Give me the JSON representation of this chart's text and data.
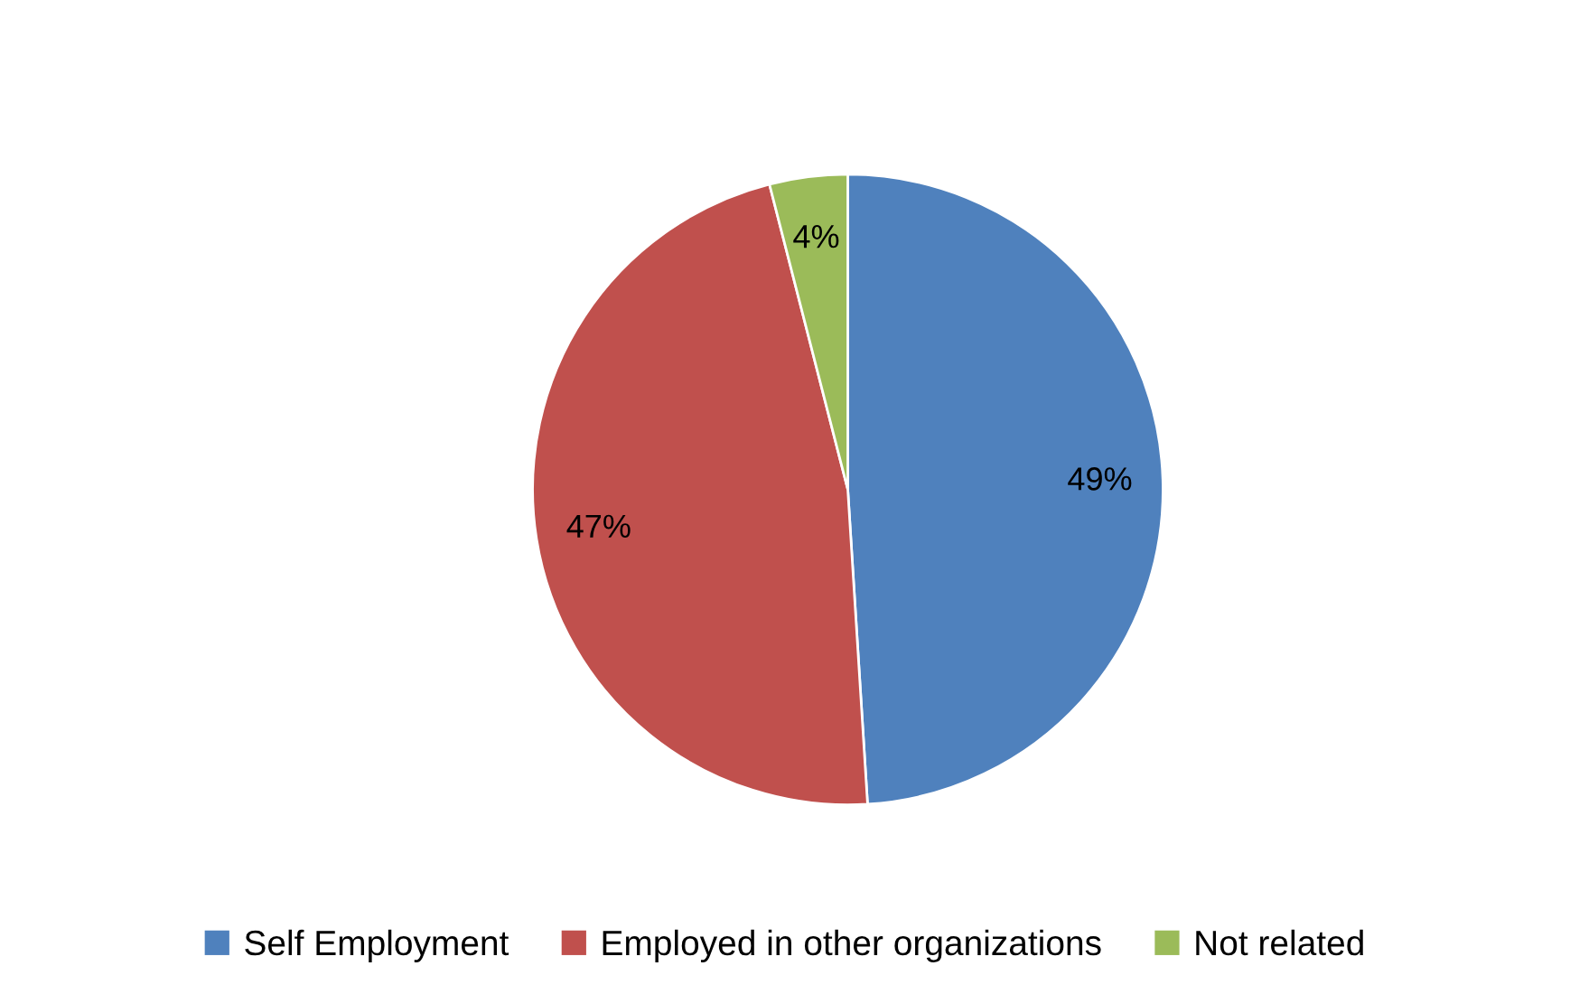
{
  "chart_data": {
    "type": "pie",
    "categories": [
      "Self Employment",
      "Employed in other organizations",
      "Not related"
    ],
    "values": [
      49,
      47,
      4
    ],
    "colors": [
      "#4f81bd",
      "#c0504d",
      "#9bbb59"
    ],
    "value_labels": [
      "49%",
      "47%",
      "4%"
    ],
    "legend": "bottom"
  }
}
